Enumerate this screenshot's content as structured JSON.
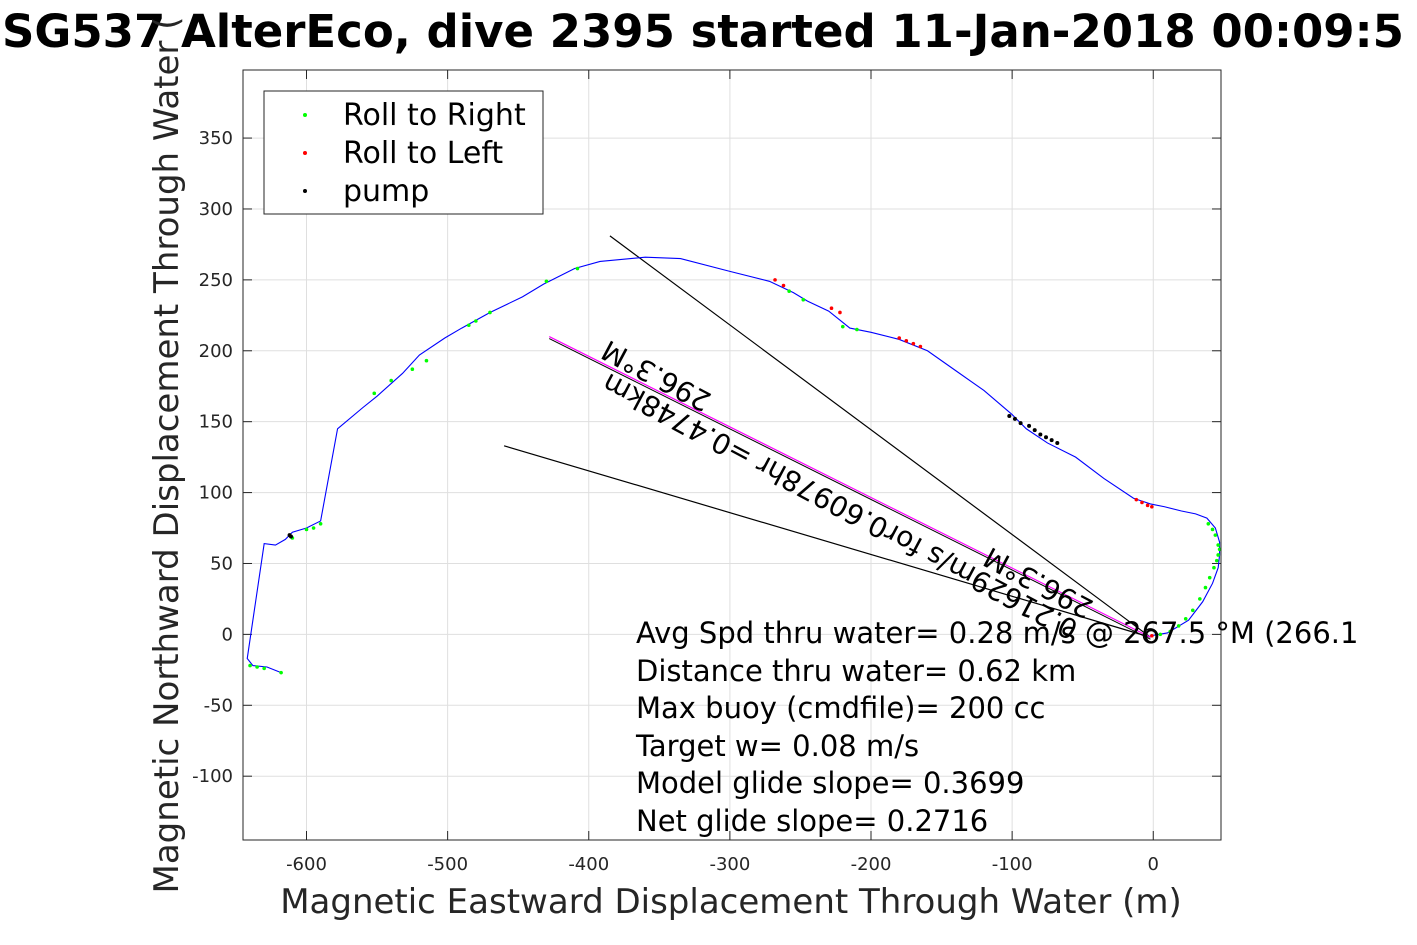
{
  "chart_data": {
    "type": "line",
    "title": "SG537 AlterEco, dive 2395 started 11-Jan-2018 00:09:5",
    "xlabel": "Magnetic Eastward Displacement Through Water (m)",
    "ylabel": "Magnetic Northward Displacement Through Water (",
    "xlim": [
      -645,
      48
    ],
    "ylim": [
      -145,
      398
    ],
    "xticks": [
      -600,
      -500,
      -400,
      -300,
      -200,
      -100,
      0
    ],
    "yticks": [
      -100,
      -50,
      0,
      50,
      100,
      150,
      200,
      250,
      300,
      350
    ],
    "xtick_labels": [
      "-600",
      "-500",
      "-400",
      "-300",
      "-200",
      "-100",
      "0"
    ],
    "ytick_labels": [
      "-100",
      "-50",
      "0",
      "50",
      "100",
      "150",
      "200",
      "250",
      "300",
      "350"
    ],
    "grid": true,
    "legend_position": "top-left",
    "legend": [
      {
        "label": "Roll to Right",
        "color": "#00ff00"
      },
      {
        "label": "Roll to Left",
        "color": "#ff0000"
      },
      {
        "label": "pump",
        "color": "#000000"
      }
    ],
    "track": {
      "color": "#0000ff",
      "x": [
        -2,
        10,
        25,
        35,
        42,
        46,
        47,
        47,
        44,
        38,
        30,
        20,
        8,
        -2,
        -8,
        -14,
        -35,
        -55,
        -75,
        -90,
        -100,
        -120,
        -140,
        -160,
        -180,
        -200,
        -215,
        -230,
        -245,
        -255,
        -272,
        -300,
        -335,
        -360,
        -392,
        -410,
        -432,
        -447,
        -470,
        -490,
        -502,
        -520,
        -532,
        -550,
        -560,
        -578,
        -590,
        -600,
        -610,
        -615,
        -622,
        -630,
        -642,
        -638,
        -628,
        -618
      ],
      "y": [
        -1,
        1,
        10,
        23,
        36,
        47,
        56,
        65,
        75,
        82,
        85,
        87,
        90,
        92,
        94,
        96,
        110,
        125,
        135,
        145,
        155,
        172,
        186,
        200,
        208,
        213,
        216,
        228,
        235,
        241,
        249,
        256,
        265,
        266,
        263,
        258,
        247,
        238,
        227,
        216,
        209,
        197,
        184,
        168,
        160,
        145,
        80,
        75,
        72,
        67,
        63,
        64,
        -17,
        -22,
        -23,
        -27
      ]
    },
    "roll_right_points": {
      "color": "#00ff00",
      "x": [
        5,
        12,
        18,
        23,
        28,
        33,
        37,
        40,
        43,
        45,
        46,
        47,
        46,
        44,
        42,
        39,
        -248,
        -258,
        -210,
        -220,
        -552,
        -540,
        -525,
        -515,
        -590,
        -595,
        -600,
        -610,
        -630,
        -635,
        -640,
        -618,
        -470,
        -480,
        -485,
        -408,
        -430
      ],
      "y": [
        0,
        2,
        6,
        11,
        17,
        25,
        33,
        40,
        47,
        52,
        56,
        60,
        63,
        70,
        74,
        78,
        236,
        242,
        215,
        217,
        170,
        179,
        187,
        193,
        78,
        75,
        74,
        68,
        -24,
        -23,
        -22,
        -27,
        227,
        221,
        218,
        258,
        249
      ]
    },
    "roll_left_points": {
      "color": "#ff0000",
      "x": [
        -12,
        -8,
        -4,
        -1,
        -268,
        -262,
        -228,
        -222,
        -180,
        -175,
        -170,
        -165,
        -1
      ],
      "y": [
        95,
        93,
        91,
        90,
        250,
        246,
        230,
        227,
        209,
        207,
        205,
        203,
        -1
      ]
    },
    "pump_points": {
      "color": "#000000",
      "x": [
        -102,
        -98,
        -94,
        -88,
        -84,
        -80,
        -76,
        -72,
        -68,
        -612,
        -611
      ],
      "y": [
        154,
        152,
        149,
        147,
        144,
        141,
        139,
        137,
        135,
        70,
        69
      ]
    },
    "heading_line": {
      "color": "#ff00ff",
      "x": [
        -428,
        -2
      ],
      "y": [
        210,
        -2
      ]
    },
    "reference_lines": [
      {
        "x": [
          -385,
          -2
        ],
        "y": [
          281,
          -2
        ]
      },
      {
        "x": [
          -460,
          -2
        ],
        "y": [
          133,
          -2
        ]
      }
    ],
    "angle_labels": {
      "upper_heading": "296.3°M",
      "speed_leg": "0.21629m/s for0.60978hr =0.4748km",
      "lower_heading": "296.3°M"
    },
    "stats": [
      "Avg Spd thru water=  0.28 m/s @ 267.5 °M (266.1",
      "Distance thru water=  0.62 km",
      "Max buoy (cmdfile)= 200 cc",
      "Target w= 0.08 m/s",
      "Model glide slope= 0.3699",
      "Net glide slope= 0.2716"
    ]
  }
}
